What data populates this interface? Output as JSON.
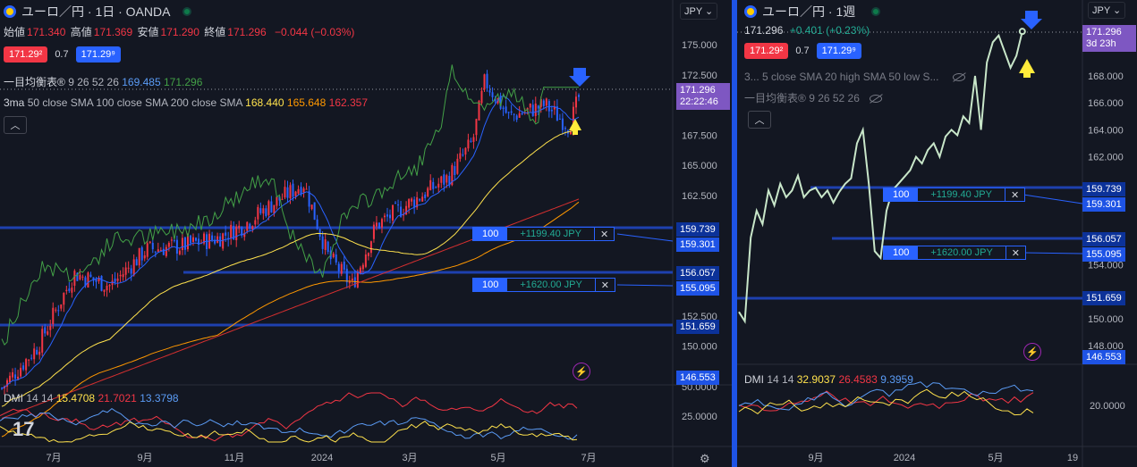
{
  "left": {
    "title": "ユーロ／円 · 1日 · OANDA",
    "ohlc": [
      {
        "label": "始値",
        "value": "171.340"
      },
      {
        "label": "高値",
        "value": "171.369"
      },
      {
        "label": "安値",
        "value": "171.290"
      },
      {
        "label": "終値",
        "value": "171.296"
      }
    ],
    "change": "−0.044 (−0.03%)",
    "sell_price": "171.29²",
    "spread": "0.7",
    "buy_price": "171.29⁹",
    "ichimoku": {
      "name": "一目均衡表®",
      "params": "9 26 52 26",
      "v1": "169.485",
      "v2": "171.296"
    },
    "ma": {
      "name": "3ma",
      "params": "50 close SMA 100 close SMA 200 close SMA",
      "v1": "168.440",
      "v2": "165.648",
      "v3": "162.357"
    },
    "currency": "JPY",
    "price_axis": [
      "175.000",
      "172.500",
      "167.500",
      "165.000",
      "162.500",
      "152.500",
      "150.000"
    ],
    "price_axis_lower": "50.0000",
    "current_price": "171.296",
    "countdown": "22:22:46",
    "level_tags": [
      "159.739",
      "159.301",
      "156.057",
      "155.095",
      "151.659",
      "146.553"
    ],
    "orders": [
      {
        "qty": "100",
        "pnl": "+1199.40 JPY",
        "close": "✕"
      },
      {
        "qty": "100",
        "pnl": "+1620.00 JPY",
        "close": "✕"
      }
    ],
    "dmi": {
      "name": "DMI",
      "params": "14 14",
      "v1": "15.4708",
      "v2": "21.7021",
      "v3": "13.3798"
    },
    "dmi_axis": "25.0000",
    "time_axis": [
      "7月",
      "9月",
      "11月",
      "2024",
      "3月",
      "5月",
      "7月"
    ]
  },
  "right": {
    "title": "ユーロ／円 · 1週",
    "price": "171.296",
    "change": "+0.401 (+0.23%)",
    "sell_price": "171.29²",
    "spread": "0.7",
    "buy_price": "171.29⁹",
    "ma_collapsed": "3...  5 close SMA 20 high SMA 50 low S...",
    "ichimoku": {
      "name": "一目均衡表®",
      "params": "9 26 52 26"
    },
    "currency": "JPY",
    "price_axis": [
      "168.000",
      "166.000",
      "164.000",
      "162.000",
      "154.000",
      "150.000",
      "148.000"
    ],
    "current_price": "171.296",
    "countdown": "3d 23h",
    "level_tags": [
      "159.739",
      "159.301",
      "156.057",
      "155.095",
      "151.659",
      "146.553"
    ],
    "orders": [
      {
        "qty": "100",
        "pnl": "+1199.40 JPY",
        "close": "✕"
      },
      {
        "qty": "100",
        "pnl": "+1620.00 JPY",
        "close": "✕"
      }
    ],
    "dmi": {
      "name": "DMI",
      "params": "14 14",
      "v1": "32.9037",
      "v2": "26.4583",
      "v3": "9.3959"
    },
    "dmi_axis": "20.0000",
    "time_axis": [
      "9月",
      "2024",
      "5月",
      "19"
    ]
  },
  "icons": [
    "flag-icon",
    "live-dot-icon",
    "collapse-icon",
    "eye-off-icon",
    "lightning-icon",
    "tradingview-logo-icon",
    "settings-icon",
    "arrow-down-icon",
    "arrow-up-icon"
  ],
  "colors": {
    "background": "#131722",
    "bull_candle": "#f23645",
    "bear_candle": "#2962ff",
    "tenkan": "#2962ff",
    "chikou": "#43a047",
    "sma50": "#ffe24d",
    "sma100": "#ff9800",
    "sma200": "#d32f2f",
    "level_line": "#1e40af",
    "weekly_line": "#c8e6c9",
    "price_label": "#7e57c2",
    "profit": "#22ab94"
  }
}
